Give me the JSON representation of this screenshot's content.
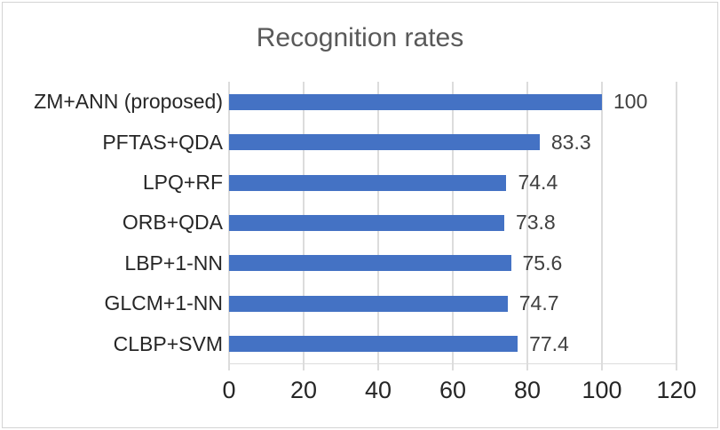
{
  "chart_data": {
    "type": "bar",
    "orientation": "horizontal",
    "title": "Recognition rates",
    "categories": [
      "ZM+ANN (proposed)",
      "PFTAS+QDA",
      "LPQ+RF",
      "ORB+QDA",
      "LBP+1-NN",
      "GLCM+1-NN",
      "CLBP+SVM"
    ],
    "values": [
      100,
      83.3,
      74.4,
      73.8,
      75.6,
      74.7,
      77.4
    ],
    "data_labels": [
      "100",
      "83.3",
      "74.4",
      "73.8",
      "75.6",
      "74.7",
      "77.4"
    ],
    "x_ticks": [
      0,
      20,
      40,
      60,
      80,
      100,
      120
    ],
    "xlim": [
      0,
      120
    ],
    "xlabel": "",
    "ylabel": "",
    "grid": "vertical",
    "legend_position": "none",
    "colors": {
      "bar": "#4472C4",
      "title": "#595959",
      "category_label": "#262626",
      "data_label": "#404040",
      "axis_label": "#262626",
      "gridline": "#DCDCDC",
      "chart_border": "#D4D4D4"
    }
  }
}
